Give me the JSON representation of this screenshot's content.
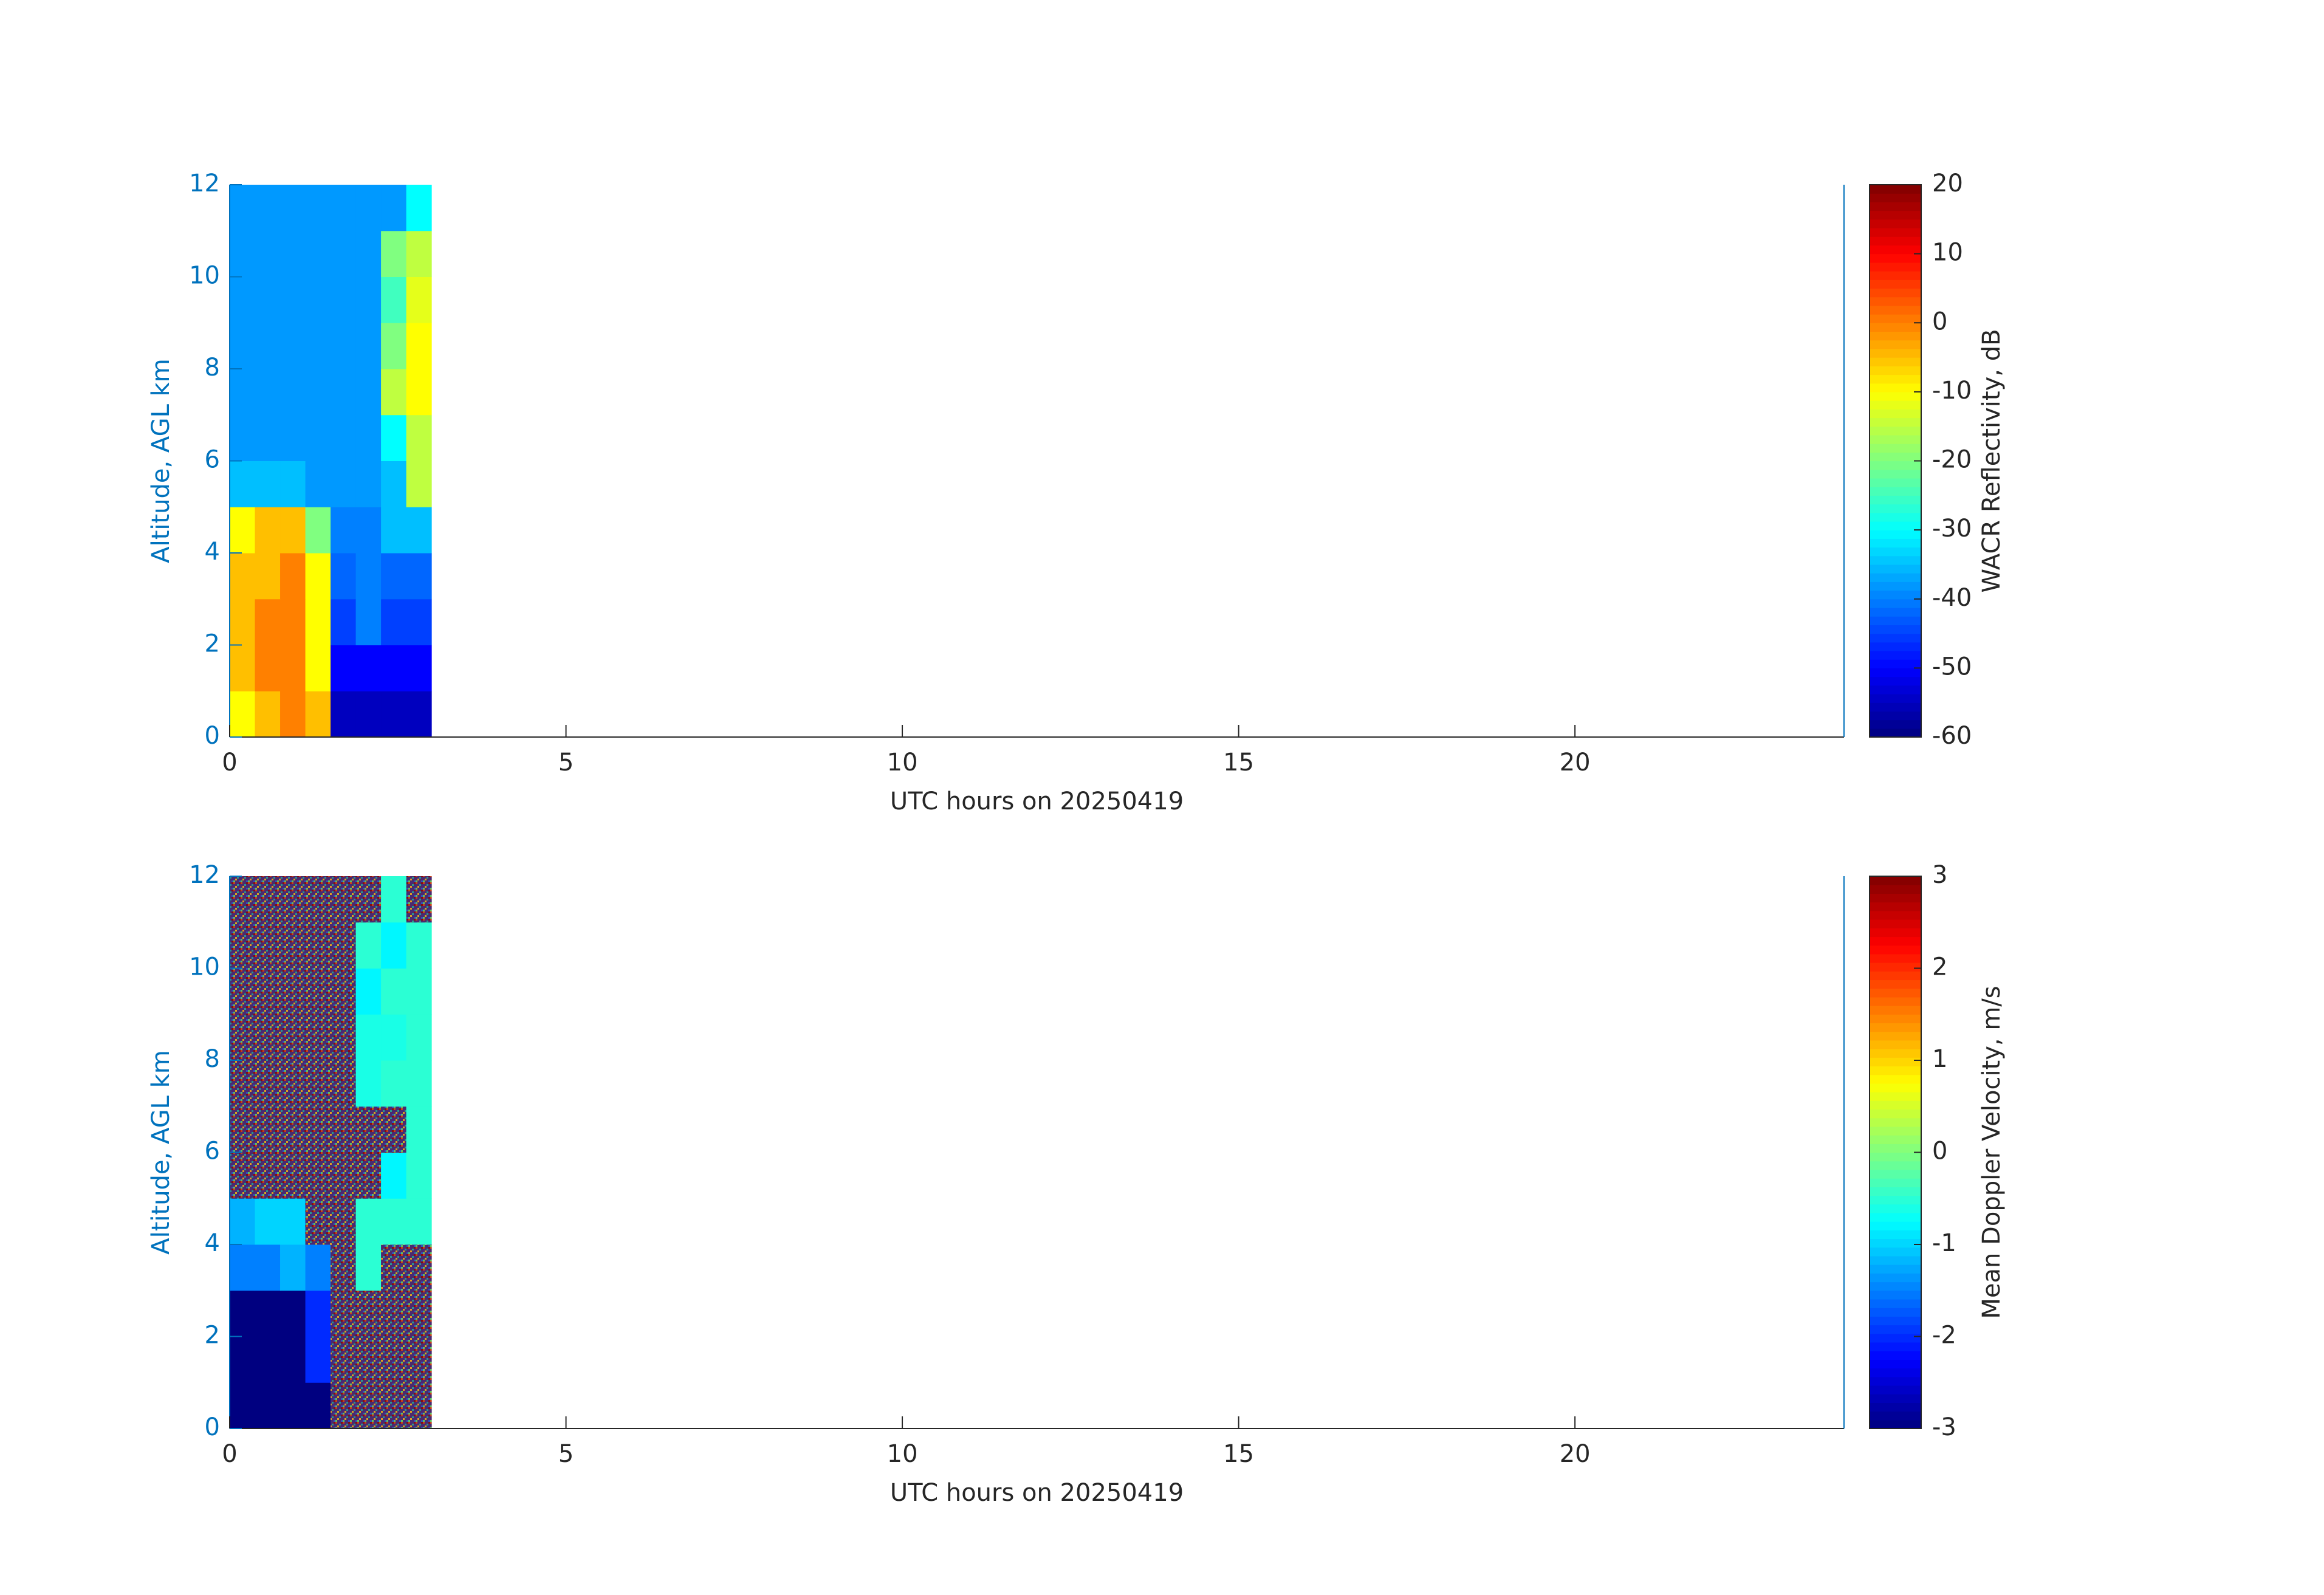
{
  "chart_data": [
    {
      "type": "heatmap",
      "xlabel": "UTC hours on 20250419",
      "ylabel": "Altitude, AGL km",
      "xlim": [
        0,
        24
      ],
      "ylim": [
        0,
        12
      ],
      "xticks": [
        0,
        5,
        10,
        15,
        20
      ],
      "yticks": [
        0,
        2,
        4,
        6,
        8,
        10,
        12
      ],
      "x_edges": [
        0,
        0.375,
        0.75,
        1.125,
        1.5,
        1.875,
        2.25,
        2.625,
        3
      ],
      "y_edges": [
        0,
        1,
        2,
        3,
        4,
        5,
        6,
        7,
        8,
        9,
        10,
        11,
        12
      ],
      "z": [
        [
          -10,
          -5,
          0,
          -5,
          -55,
          -55,
          -55,
          -55
        ],
        [
          -5,
          0,
          0,
          -10,
          -50,
          -50,
          -50,
          -50
        ],
        [
          -5,
          0,
          0,
          -10,
          -45,
          -40,
          -45,
          -45
        ],
        [
          -5,
          -5,
          0,
          -10,
          -42,
          -40,
          -42,
          -42
        ],
        [
          -10,
          -5,
          -5,
          -20,
          -40,
          -40,
          -35,
          -35
        ],
        [
          -35,
          -35,
          -35,
          -38,
          -38,
          -38,
          -35,
          -15
        ],
        [
          -38,
          -38,
          -38,
          -38,
          -38,
          -38,
          -30,
          -15
        ],
        [
          -38,
          -38,
          -38,
          -38,
          -38,
          -38,
          -15,
          -10
        ],
        [
          -38,
          -38,
          -38,
          -38,
          -38,
          -38,
          -20,
          -10
        ],
        [
          -38,
          -38,
          -38,
          -38,
          -38,
          -38,
          -25,
          -12
        ],
        [
          -38,
          -38,
          -38,
          -38,
          -38,
          -38,
          -20,
          -15
        ],
        [
          -38,
          -38,
          -38,
          -38,
          -38,
          -38,
          -38,
          -30
        ]
      ],
      "colorbar": {
        "label": "WACR Reflectivity, dB",
        "colormap": "jet",
        "lim": [
          -60,
          20
        ],
        "ticks": [
          -60,
          -50,
          -40,
          -30,
          -20,
          -10,
          0,
          10,
          20
        ]
      }
    },
    {
      "type": "heatmap",
      "xlabel": "UTC hours on 20250419",
      "ylabel": "Altitude, AGL km",
      "xlim": [
        0,
        24
      ],
      "ylim": [
        0,
        12
      ],
      "xticks": [
        0,
        5,
        10,
        15,
        20
      ],
      "yticks": [
        0,
        2,
        4,
        6,
        8,
        10,
        12
      ],
      "x_edges": [
        0,
        0.375,
        0.75,
        1.125,
        1.5,
        1.875,
        2.25,
        2.625,
        3
      ],
      "y_edges": [
        0,
        1,
        2,
        3,
        4,
        5,
        6,
        7,
        8,
        9,
        10,
        11,
        12
      ],
      "z": [
        [
          -3,
          -3,
          -3,
          -3,
          null,
          null,
          null,
          null
        ],
        [
          -3,
          -3,
          -3,
          -2,
          null,
          null,
          null,
          null
        ],
        [
          -3,
          -3,
          -3,
          -2,
          null,
          null,
          null,
          null
        ],
        [
          -1.5,
          -1.5,
          -1.2,
          -1.5,
          null,
          -0.5,
          null,
          null
        ],
        [
          -1.2,
          -1,
          -1,
          null,
          null,
          -0.5,
          -0.5,
          -0.5
        ],
        [
          null,
          null,
          null,
          null,
          null,
          null,
          -0.8,
          -0.5
        ],
        [
          null,
          null,
          null,
          null,
          null,
          null,
          null,
          -0.5
        ],
        [
          null,
          null,
          null,
          null,
          null,
          -0.6,
          -0.5,
          -0.5
        ],
        [
          null,
          null,
          null,
          null,
          null,
          -0.6,
          -0.6,
          -0.5
        ],
        [
          null,
          null,
          null,
          null,
          null,
          -0.8,
          -0.5,
          -0.5
        ],
        [
          null,
          null,
          null,
          null,
          null,
          -0.5,
          -0.8,
          -0.5
        ],
        [
          null,
          null,
          null,
          null,
          null,
          null,
          -0.5,
          null
        ]
      ],
      "colorbar": {
        "label": "Mean Doppler Velocity, m/s",
        "colormap": "jet",
        "lim": [
          -3,
          3
        ],
        "ticks": [
          -3,
          -2,
          -1,
          0,
          1,
          2,
          3
        ]
      }
    }
  ]
}
